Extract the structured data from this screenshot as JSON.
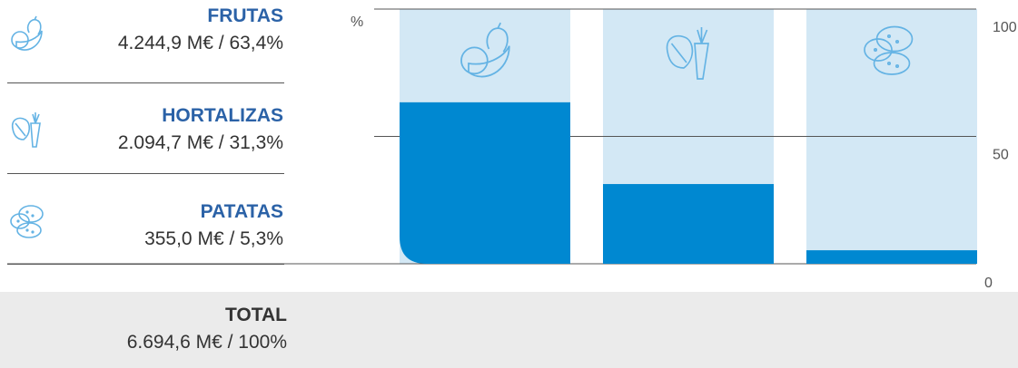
{
  "legend": [
    {
      "name": "FRUTAS",
      "value": "4.244,9 M€ / 63,4%",
      "icon": "fruit-icon"
    },
    {
      "name": "HORTALIZAS",
      "value": "2.094,7 M€ / 31,3%",
      "icon": "vegetable-icon"
    },
    {
      "name": "PATATAS",
      "value": "355,0 M€ / 5,3%",
      "icon": "potato-icon"
    }
  ],
  "total": {
    "name": "TOTAL",
    "value": "6.694,6 M€ / 100%"
  },
  "colors": {
    "bar_fill": "#0088d1",
    "bar_background": "#d3e8f5",
    "legend_name": "#2b62a7",
    "icon_stroke": "#64b3e4"
  },
  "chart_data": {
    "type": "bar",
    "categories": [
      "FRUTAS",
      "HORTALIZAS",
      "PATATAS"
    ],
    "values": [
      63.4,
      31.3,
      5.3
    ],
    "ylabel": "%",
    "ylim": [
      0,
      100
    ],
    "yticks": [
      "0",
      "50",
      "100"
    ],
    "gridlines": true
  }
}
